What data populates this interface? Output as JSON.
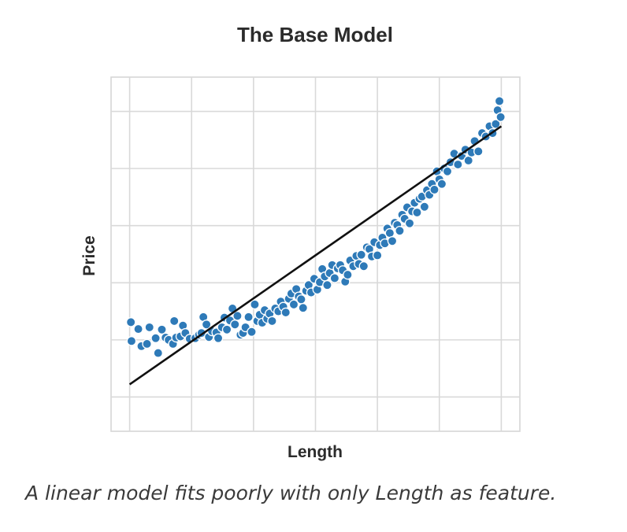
{
  "chart_data": {
    "type": "scatter",
    "title": "The Base Model",
    "xlabel": "Length",
    "ylabel": "Price",
    "xlim": [
      -0.3,
      6.3
    ],
    "ylim": [
      -0.6,
      5.6
    ],
    "xticks": [
      0,
      1,
      2,
      3,
      4,
      5,
      6
    ],
    "yticks": [
      0,
      1,
      2,
      3,
      4,
      5
    ],
    "tick_labels_shown": false,
    "grid": true,
    "point_color": "#2e7ab8",
    "line_color": "#111111",
    "points": [
      [
        0.02,
        1.31
      ],
      [
        0.03,
        0.98
      ],
      [
        0.14,
        1.19
      ],
      [
        0.19,
        0.89
      ],
      [
        0.28,
        0.93
      ],
      [
        0.32,
        1.22
      ],
      [
        0.42,
        1.03
      ],
      [
        0.46,
        0.77
      ],
      [
        0.52,
        1.18
      ],
      [
        0.58,
        1.04
      ],
      [
        0.63,
        1.0
      ],
      [
        0.7,
        0.93
      ],
      [
        0.72,
        1.33
      ],
      [
        0.75,
        1.04
      ],
      [
        0.82,
        1.06
      ],
      [
        0.86,
        1.25
      ],
      [
        0.9,
        1.12
      ],
      [
        0.97,
        1.02
      ],
      [
        1.06,
        1.03
      ],
      [
        1.12,
        1.09
      ],
      [
        1.16,
        1.12
      ],
      [
        1.19,
        1.4
      ],
      [
        1.24,
        1.27
      ],
      [
        1.28,
        1.05
      ],
      [
        1.33,
        1.15
      ],
      [
        1.4,
        1.13
      ],
      [
        1.43,
        1.03
      ],
      [
        1.49,
        1.22
      ],
      [
        1.53,
        1.39
      ],
      [
        1.57,
        1.18
      ],
      [
        1.62,
        1.34
      ],
      [
        1.66,
        1.55
      ],
      [
        1.7,
        1.27
      ],
      [
        1.74,
        1.42
      ],
      [
        1.79,
        1.09
      ],
      [
        1.83,
        1.12
      ],
      [
        1.87,
        1.22
      ],
      [
        1.92,
        1.4
      ],
      [
        1.97,
        1.14
      ],
      [
        2.02,
        1.62
      ],
      [
        2.06,
        1.33
      ],
      [
        2.1,
        1.44
      ],
      [
        2.14,
        1.3
      ],
      [
        2.18,
        1.52
      ],
      [
        2.22,
        1.37
      ],
      [
        2.26,
        1.46
      ],
      [
        2.3,
        1.33
      ],
      [
        2.35,
        1.55
      ],
      [
        2.4,
        1.5
      ],
      [
        2.44,
        1.67
      ],
      [
        2.48,
        1.58
      ],
      [
        2.52,
        1.48
      ],
      [
        2.57,
        1.72
      ],
      [
        2.61,
        1.81
      ],
      [
        2.65,
        1.62
      ],
      [
        2.69,
        1.89
      ],
      [
        2.73,
        1.76
      ],
      [
        2.77,
        1.71
      ],
      [
        2.8,
        1.56
      ],
      [
        2.85,
        1.86
      ],
      [
        2.89,
        1.96
      ],
      [
        2.93,
        1.83
      ],
      [
        2.98,
        2.07
      ],
      [
        3.03,
        1.88
      ],
      [
        3.07,
        2.01
      ],
      [
        3.11,
        2.24
      ],
      [
        3.15,
        2.11
      ],
      [
        3.19,
        1.96
      ],
      [
        3.23,
        2.17
      ],
      [
        3.27,
        2.31
      ],
      [
        3.31,
        2.08
      ],
      [
        3.36,
        2.25
      ],
      [
        3.4,
        2.31
      ],
      [
        3.44,
        2.22
      ],
      [
        3.48,
        2.02
      ],
      [
        3.52,
        2.14
      ],
      [
        3.56,
        2.39
      ],
      [
        3.61,
        2.29
      ],
      [
        3.66,
        2.47
      ],
      [
        3.7,
        2.33
      ],
      [
        3.74,
        2.49
      ],
      [
        3.78,
        2.29
      ],
      [
        3.83,
        2.62
      ],
      [
        3.87,
        2.59
      ],
      [
        3.91,
        2.46
      ],
      [
        3.95,
        2.71
      ],
      [
        4.0,
        2.48
      ],
      [
        4.04,
        2.66
      ],
      [
        4.08,
        2.79
      ],
      [
        4.12,
        2.69
      ],
      [
        4.16,
        2.95
      ],
      [
        4.2,
        2.87
      ],
      [
        4.24,
        2.73
      ],
      [
        4.28,
        3.05
      ],
      [
        4.32,
        3.01
      ],
      [
        4.36,
        2.91
      ],
      [
        4.4,
        3.19
      ],
      [
        4.44,
        3.12
      ],
      [
        4.48,
        3.32
      ],
      [
        4.52,
        3.04
      ],
      [
        4.56,
        3.25
      ],
      [
        4.6,
        3.4
      ],
      [
        4.64,
        3.23
      ],
      [
        4.68,
        3.47
      ],
      [
        4.72,
        3.51
      ],
      [
        4.76,
        3.33
      ],
      [
        4.8,
        3.62
      ],
      [
        4.84,
        3.54
      ],
      [
        4.88,
        3.73
      ],
      [
        4.92,
        3.63
      ],
      [
        4.96,
        3.95
      ],
      [
        5.0,
        3.81
      ],
      [
        5.04,
        3.73
      ],
      [
        5.08,
        4.0
      ],
      [
        5.13,
        3.95
      ],
      [
        5.18,
        4.11
      ],
      [
        5.24,
        4.26
      ],
      [
        5.3,
        4.07
      ],
      [
        5.36,
        4.22
      ],
      [
        5.42,
        4.33
      ],
      [
        5.47,
        4.14
      ],
      [
        5.52,
        4.28
      ],
      [
        5.57,
        4.48
      ],
      [
        5.63,
        4.3
      ],
      [
        5.69,
        4.62
      ],
      [
        5.75,
        4.56
      ],
      [
        5.81,
        4.74
      ],
      [
        5.86,
        4.62
      ],
      [
        5.91,
        4.78
      ],
      [
        5.94,
        5.02
      ],
      [
        5.97,
        5.18
      ],
      [
        5.99,
        4.9
      ]
    ],
    "fit_line": {
      "x": [
        0,
        6
      ],
      "y": [
        0.22,
        4.74
      ]
    }
  },
  "caption": "A linear model fits poorly with only Length as feature."
}
